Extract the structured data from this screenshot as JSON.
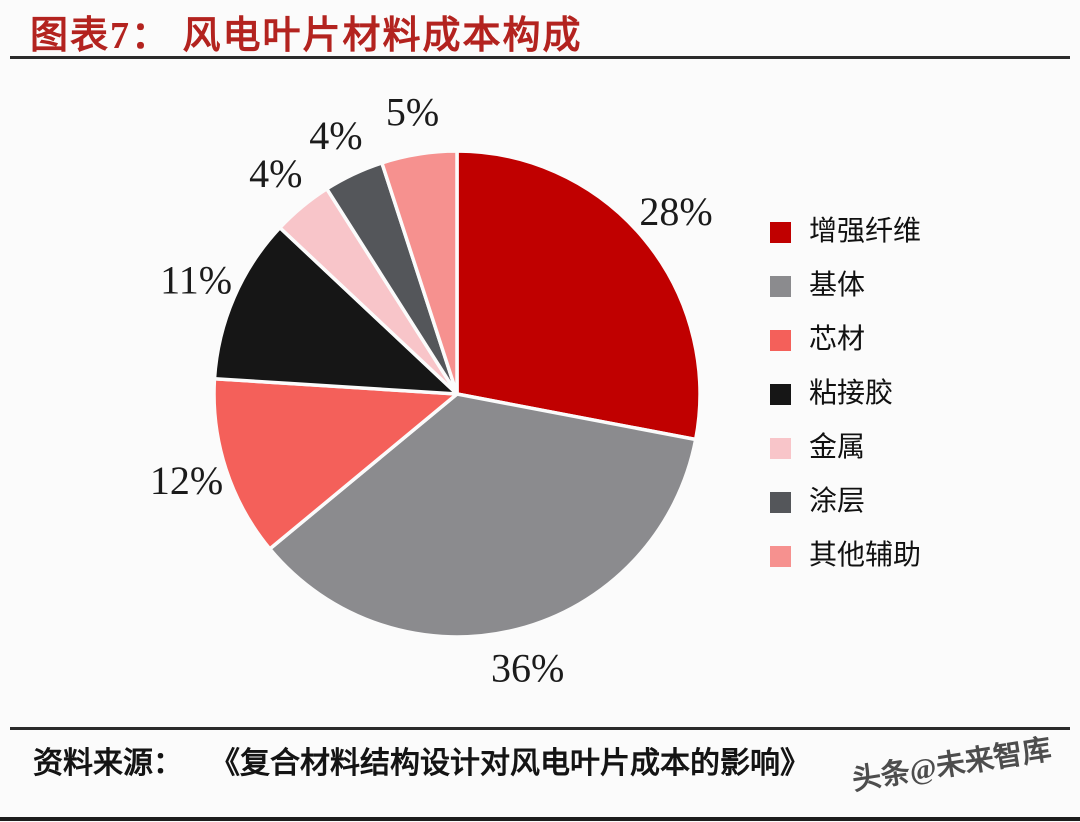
{
  "header": {
    "title": "图表7： 风电叶片材料成本构成"
  },
  "chart_data": {
    "type": "pie",
    "title": "图表7： 风电叶片材料成本构成",
    "categories": [
      "增强纤维",
      "基体",
      "芯材",
      "粘接胶",
      "金属",
      "涂层",
      "其他辅助"
    ],
    "values": [
      28,
      36,
      12,
      11,
      4,
      4,
      5
    ],
    "labels": [
      "28%",
      "36%",
      "12%",
      "11%",
      "4%",
      "4%",
      "5%"
    ],
    "colors": [
      "#c00000",
      "#8b8b8e",
      "#f4605a",
      "#161616",
      "#f8c5c9",
      "#54565a",
      "#f6918f"
    ],
    "start_angle_deg": 0,
    "direction": "clockwise",
    "legend_position": "right",
    "label_position": "outside"
  },
  "footer": {
    "source_label": "资料来源：",
    "source_text": "《复合材料结构设计对风电叶片成本的影响》",
    "watermark": "头条@未来智库"
  },
  "colors": {
    "title": "#b3231f",
    "rule": "#2b2b2b",
    "background": "#fbfbfb",
    "label_text": "#1b1b1b"
  }
}
